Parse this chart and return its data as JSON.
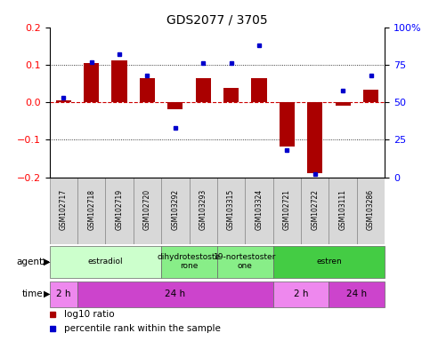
{
  "title": "GDS2077 / 3705",
  "samples": [
    "GSM102717",
    "GSM102718",
    "GSM102719",
    "GSM102720",
    "GSM103292",
    "GSM103293",
    "GSM103315",
    "GSM103324",
    "GSM102721",
    "GSM102722",
    "GSM103111",
    "GSM103286"
  ],
  "log10_ratio": [
    0.005,
    0.105,
    0.112,
    0.065,
    -0.018,
    0.065,
    0.038,
    0.065,
    -0.118,
    -0.19,
    -0.01,
    0.033
  ],
  "percentile_rank": [
    53,
    77,
    82,
    68,
    33,
    76,
    76,
    88,
    18,
    2,
    58,
    68
  ],
  "ylim": [
    -0.2,
    0.2
  ],
  "yticks_left": [
    -0.2,
    -0.1,
    0.0,
    0.1,
    0.2
  ],
  "yticks_right": [
    0,
    25,
    50,
    75,
    100
  ],
  "bar_color": "#aa0000",
  "dot_color": "#0000cc",
  "zero_line_color": "#cc0000",
  "agents": [
    {
      "label": "estradiol",
      "start": 0,
      "end": 4,
      "color": "#ccffcc"
    },
    {
      "label": "dihydrotestoste\nrone",
      "start": 4,
      "end": 6,
      "color": "#88ee88"
    },
    {
      "label": "19-nortestoster\none",
      "start": 6,
      "end": 8,
      "color": "#88ee88"
    },
    {
      "label": "estren",
      "start": 8,
      "end": 12,
      "color": "#44cc44"
    }
  ],
  "times": [
    {
      "label": "2 h",
      "start": 0,
      "end": 1,
      "color": "#ee88ee"
    },
    {
      "label": "24 h",
      "start": 1,
      "end": 8,
      "color": "#cc44cc"
    },
    {
      "label": "2 h",
      "start": 8,
      "end": 10,
      "color": "#ee88ee"
    },
    {
      "label": "24 h",
      "start": 10,
      "end": 12,
      "color": "#cc44cc"
    }
  ],
  "legend_red": "log10 ratio",
  "legend_blue": "percentile rank within the sample",
  "bar_width": 0.55
}
